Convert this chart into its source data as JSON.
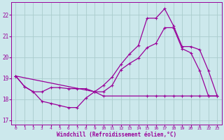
{
  "xlabel": "Windchill (Refroidissement éolien,°C)",
  "background_color": "#cce8ec",
  "line_color": "#990099",
  "grid_color": "#aacccc",
  "xlim": [
    -0.5,
    23.5
  ],
  "ylim": [
    16.8,
    22.6
  ],
  "xticks": [
    0,
    1,
    2,
    3,
    4,
    5,
    6,
    7,
    8,
    9,
    10,
    11,
    12,
    13,
    14,
    15,
    16,
    17,
    18,
    19,
    20,
    21,
    22,
    23
  ],
  "yticks": [
    17,
    18,
    19,
    20,
    21,
    22
  ],
  "line1_x": [
    0,
    1,
    2,
    3,
    4,
    5,
    6,
    7,
    8,
    9,
    10,
    11,
    12,
    13,
    14,
    15,
    16,
    17,
    18,
    19,
    20,
    21,
    22,
    23
  ],
  "line1_y": [
    19.1,
    18.6,
    18.35,
    17.9,
    17.8,
    17.7,
    17.6,
    17.6,
    18.05,
    18.35,
    18.35,
    18.65,
    19.4,
    19.7,
    19.95,
    20.45,
    20.65,
    21.4,
    21.4,
    20.4,
    20.2,
    19.35,
    18.15,
    18.15
  ],
  "line2_x": [
    0,
    1,
    2,
    3,
    4,
    5,
    6,
    7,
    8,
    9,
    10,
    15,
    16,
    17,
    18,
    19,
    20,
    21,
    22,
    23
  ],
  "line2_y": [
    19.1,
    18.6,
    18.35,
    18.35,
    18.55,
    18.55,
    18.5,
    18.5,
    18.5,
    18.35,
    18.15,
    18.15,
    18.15,
    18.15,
    18.15,
    18.15,
    18.15,
    18.15,
    18.15,
    18.15
  ],
  "line3_x": [
    0,
    9,
    10,
    11,
    12,
    13,
    14,
    15,
    16,
    17,
    18,
    19,
    20,
    21,
    22,
    23
  ],
  "line3_y": [
    19.1,
    18.35,
    18.65,
    19.05,
    19.65,
    20.15,
    20.55,
    21.85,
    21.85,
    22.3,
    21.5,
    20.5,
    20.5,
    20.35,
    19.35,
    18.15
  ]
}
